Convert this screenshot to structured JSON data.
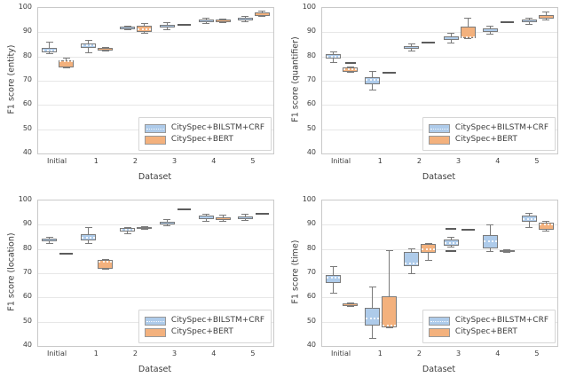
{
  "figure": {
    "xlabel": "Dataset"
  },
  "chart_data": [
    {
      "type": "box",
      "key": "entity",
      "ylabel": "F1 score (entity)",
      "xlabel": "Dataset",
      "categories": [
        "Initial",
        "1",
        "2",
        "3",
        "4",
        "5"
      ],
      "ylim": [
        40,
        100
      ],
      "yticks": [
        40,
        50,
        60,
        70,
        80,
        90,
        100
      ],
      "legend": [
        "CitySpec+BILSTM+CRF",
        "CitySpec+BERT"
      ],
      "legend_position": "lower right",
      "grid": true,
      "series": [
        {
          "name": "CitySpec+BILSTM+CRF",
          "color": "#aecbea",
          "boxes": [
            {
              "whislo": 81.0,
              "q1": 81.8,
              "med": 82.6,
              "q3": 83.5,
              "whishi": 85.8
            },
            {
              "whislo": 81.6,
              "q1": 83.4,
              "med": 84.6,
              "q3": 85.5,
              "whishi": 86.6
            },
            {
              "whislo": 90.9,
              "q1": 91.3,
              "med": 91.8,
              "q3": 92.2,
              "whishi": 92.6
            },
            {
              "whislo": 91.2,
              "q1": 91.8,
              "med": 92.4,
              "q3": 93.1,
              "whishi": 93.8
            },
            {
              "whislo": 93.5,
              "q1": 94.0,
              "med": 94.5,
              "q3": 95.1,
              "whishi": 95.9
            },
            {
              "whislo": 94.5,
              "q1": 95.0,
              "med": 95.5,
              "q3": 96.1,
              "whishi": 96.6
            }
          ]
        },
        {
          "name": "CitySpec+BERT",
          "color": "#f3b17d",
          "boxes": [
            {
              "whislo": 75.3,
              "q1": 75.6,
              "med": 77.9,
              "q3": 78.4,
              "whishi": 79.4
            },
            {
              "whislo": 82.3,
              "q1": 82.4,
              "med": 83.0,
              "q3": 83.6,
              "whishi": 83.7
            },
            {
              "whislo": 89.6,
              "q1": 90.0,
              "med": 91.2,
              "q3": 92.7,
              "whishi": 93.7
            },
            {
              "dash": 92.9
            },
            {
              "whislo": 93.9,
              "q1": 94.3,
              "med": 94.7,
              "q3": 95.1,
              "whishi": 95.5
            },
            {
              "whislo": 96.4,
              "q1": 96.8,
              "med": 97.5,
              "q3": 98.1,
              "whishi": 98.6
            }
          ]
        }
      ]
    },
    {
      "type": "box",
      "key": "quantifier",
      "ylabel": "F1 score (quantifier)",
      "xlabel": "Dataset",
      "categories": [
        "Initial",
        "1",
        "2",
        "3",
        "4",
        "5"
      ],
      "ylim": [
        40,
        100
      ],
      "yticks": [
        40,
        50,
        60,
        70,
        80,
        90,
        100
      ],
      "legend": [
        "CitySpec+BILSTM+CRF",
        "CitySpec+BERT"
      ],
      "legend_position": "lower right",
      "grid": true,
      "series": [
        {
          "name": "CitySpec+BILSTM+CRF",
          "color": "#aecbea",
          "boxes": [
            {
              "whislo": 77.5,
              "q1": 79.2,
              "med": 80.0,
              "q3": 80.8,
              "whishi": 81.9
            },
            {
              "whislo": 66.0,
              "q1": 68.6,
              "med": 70.4,
              "q3": 71.4,
              "whishi": 73.9
            },
            {
              "whislo": 82.3,
              "q1": 83.0,
              "med": 83.5,
              "q3": 84.2,
              "whishi": 85.3
            },
            {
              "whislo": 85.4,
              "q1": 87.0,
              "med": 87.5,
              "q3": 88.4,
              "whishi": 89.4
            },
            {
              "whislo": 89.2,
              "q1": 90.2,
              "med": 91.0,
              "q3": 91.6,
              "whishi": 92.4
            },
            {
              "whislo": 93.3,
              "q1": 94.0,
              "med": 94.6,
              "q3": 95.2,
              "whishi": 95.9
            }
          ]
        },
        {
          "name": "CitySpec+BERT",
          "color": "#f3b17d",
          "boxes": [
            {
              "whislo": 73.4,
              "q1": 73.7,
              "med": 74.8,
              "q3": 75.4,
              "whishi": 75.6,
              "fliers": [
                77.2
              ]
            },
            {
              "dash": 73.2
            },
            {
              "dash": 85.8
            },
            {
              "whislo": 87.2,
              "q1": 87.4,
              "med": 88.1,
              "q3": 92.4,
              "whishi": 95.8
            },
            {
              "dash": 94.2
            },
            {
              "whislo": 95.2,
              "q1": 95.6,
              "med": 96.2,
              "q3": 97.0,
              "whishi": 98.3
            }
          ]
        }
      ]
    },
    {
      "type": "box",
      "key": "location",
      "ylabel": "F1 score (location)",
      "xlabel": "Dataset",
      "categories": [
        "Initial",
        "1",
        "2",
        "3",
        "4",
        "5"
      ],
      "ylim": [
        40,
        100
      ],
      "yticks": [
        40,
        50,
        60,
        70,
        80,
        90,
        100
      ],
      "legend": [
        "CitySpec+BILSTM+CRF",
        "CitySpec+BERT"
      ],
      "legend_position": "lower right",
      "grid": true,
      "series": [
        {
          "name": "CitySpec+BILSTM+CRF",
          "color": "#aecbea",
          "boxes": [
            {
              "whislo": 82.4,
              "q1": 83.1,
              "med": 83.6,
              "q3": 84.2,
              "whishi": 85.0
            },
            {
              "whislo": 82.3,
              "q1": 83.4,
              "med": 84.5,
              "q3": 86.2,
              "whishi": 89.0
            },
            {
              "whislo": 86.2,
              "q1": 87.1,
              "med": 88.0,
              "q3": 88.6,
              "whishi": 88.9
            },
            {
              "whislo": 89.4,
              "q1": 90.0,
              "med": 90.5,
              "q3": 91.2,
              "whishi": 92.0
            },
            {
              "whislo": 91.5,
              "q1": 92.2,
              "med": 93.0,
              "q3": 93.6,
              "whishi": 94.2
            },
            {
              "whislo": 91.8,
              "q1": 92.2,
              "med": 92.8,
              "q3": 93.4,
              "whishi": 94.4
            }
          ]
        },
        {
          "name": "CitySpec+BERT",
          "color": "#f3b17d",
          "boxes": [
            {
              "dash": 78.0
            },
            {
              "whislo": 71.8,
              "q1": 72.0,
              "med": 74.6,
              "q3": 75.4,
              "whishi": 75.5
            },
            {
              "whislo": 88.0,
              "q1": 88.2,
              "med": 88.7,
              "q3": 89.2,
              "whishi": 89.3
            },
            {
              "dash": 96.5
            },
            {
              "whislo": 91.4,
              "q1": 91.8,
              "med": 92.5,
              "q3": 93.2,
              "whishi": 93.9
            },
            {
              "dash": 94.6
            }
          ]
        }
      ]
    },
    {
      "type": "box",
      "key": "time",
      "ylabel": "F1 score (time)",
      "xlabel": "Dataset",
      "categories": [
        "Initial",
        "1",
        "2",
        "3",
        "4",
        "5"
      ],
      "ylim": [
        40,
        100
      ],
      "yticks": [
        40,
        50,
        60,
        70,
        80,
        90,
        100
      ],
      "legend": [
        "CitySpec+BILSTM+CRF",
        "CitySpec+BERT"
      ],
      "legend_position": "lower right",
      "grid": true,
      "series": [
        {
          "name": "CitySpec+BILSTM+CRF",
          "color": "#aecbea",
          "boxes": [
            {
              "whislo": 61.9,
              "q1": 65.8,
              "med": 68.2,
              "q3": 69.4,
              "whishi": 72.8
            },
            {
              "whislo": 43.1,
              "q1": 48.4,
              "med": 51.5,
              "q3": 55.6,
              "whishi": 64.2
            },
            {
              "whislo": 69.9,
              "q1": 72.9,
              "med": 74.2,
              "q3": 78.6,
              "whishi": 79.9
            },
            {
              "whislo": 80.9,
              "q1": 81.4,
              "med": 82.6,
              "q3": 84.0,
              "whishi": 84.9,
              "fliers": [
                88.2,
                79.1
              ]
            },
            {
              "whislo": 79.0,
              "q1": 80.4,
              "med": 83.2,
              "q3": 85.6,
              "whishi": 90.0
            },
            {
              "whislo": 89.0,
              "q1": 91.2,
              "med": 92.4,
              "q3": 93.6,
              "whishi": 94.8
            }
          ]
        },
        {
          "name": "CitySpec+BERT",
          "color": "#f3b17d",
          "boxes": [
            {
              "whislo": 56.3,
              "q1": 56.5,
              "med": 57.0,
              "q3": 57.6,
              "whishi": 57.7
            },
            {
              "whislo": 47.4,
              "q1": 47.6,
              "med": 48.3,
              "q3": 60.4,
              "whishi": 79.4
            },
            {
              "whislo": 75.4,
              "q1": 78.4,
              "med": 79.8,
              "q3": 82.0,
              "whishi": 82.1
            },
            {
              "dash": 87.8
            },
            {
              "whislo": 78.5,
              "q1": 78.7,
              "med": 79.1,
              "q3": 79.6,
              "whishi": 79.7
            },
            {
              "whislo": 87.2,
              "q1": 87.8,
              "med": 90.2,
              "q3": 91.0,
              "whishi": 91.4
            }
          ]
        }
      ]
    }
  ],
  "style": {
    "box_fill_blue": "#aecbea",
    "box_fill_orange": "#f3b17d",
    "box_edge": "#7a7a7a",
    "grid_color": "#e7e7e7",
    "spine_color": "#c9c9c9",
    "text_color": "#3c3c3c",
    "dash_color": "#5c5c5c"
  }
}
